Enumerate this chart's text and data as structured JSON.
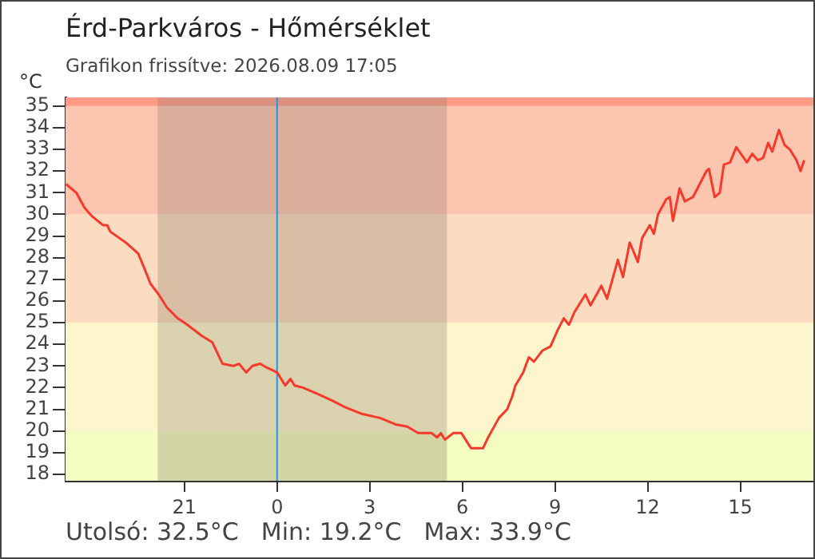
{
  "chart_data": {
    "type": "line",
    "title": "Érd-Parkváros - Hőmérséklet",
    "subtitle": "Grafikon frissítve: 2026.08.09 17:05",
    "ylabel": "°C",
    "annotations": [
      "Utolsó: 32.5°C",
      "Min: 19.2°C",
      "Max: 33.9°C"
    ],
    "xlim": [
      "2026-08-08T17:09",
      "2026-08-09T17:25"
    ],
    "ylim": [
      17.7,
      35.4
    ],
    "xticks": [
      {
        "value": "2026-08-08T21:00",
        "label": "21"
      },
      {
        "value": "2026-08-09T00:00",
        "label": "0"
      },
      {
        "value": "2026-08-09T03:00",
        "label": "3"
      },
      {
        "value": "2026-08-09T06:00",
        "label": "6"
      },
      {
        "value": "2026-08-09T09:00",
        "label": "9"
      },
      {
        "value": "2026-08-09T12:00",
        "label": "12"
      },
      {
        "value": "2026-08-09T15:00",
        "label": "15"
      }
    ],
    "yticks": [
      18,
      19,
      20,
      21,
      22,
      23,
      24,
      25,
      26,
      27,
      28,
      29,
      30,
      31,
      32,
      33,
      34,
      35
    ],
    "series": [
      {
        "color": "#f5392b",
        "x": [
          "2026-08-08T17:10",
          "2026-08-08T17:30",
          "2026-08-08T17:46",
          "2026-08-08T18:01",
          "2026-08-08T18:22",
          "2026-08-08T18:30",
          "2026-08-08T18:36",
          "2026-08-08T19:06",
          "2026-08-08T19:30",
          "2026-08-08T19:44",
          "2026-08-08T19:54",
          "2026-08-08T20:10",
          "2026-08-08T20:26",
          "2026-08-08T20:47",
          "2026-08-08T21:06",
          "2026-08-08T21:33",
          "2026-08-08T21:54",
          "2026-08-08T22:14",
          "2026-08-08T22:35",
          "2026-08-08T22:46",
          "2026-08-08T23:00",
          "2026-08-08T23:12",
          "2026-08-08T23:27",
          "2026-08-08T23:42",
          "2026-08-09T00:00",
          "2026-08-09T00:16",
          "2026-08-09T00:26",
          "2026-08-09T00:34",
          "2026-08-09T00:50",
          "2026-08-09T01:00",
          "2026-08-09T01:20",
          "2026-08-09T01:47",
          "2026-08-09T02:12",
          "2026-08-09T02:43",
          "2026-08-09T03:20",
          "2026-08-09T03:50",
          "2026-08-09T04:13",
          "2026-08-09T04:34",
          "2026-08-09T05:00",
          "2026-08-09T05:11",
          "2026-08-09T05:18",
          "2026-08-09T05:26",
          "2026-08-09T05:42",
          "2026-08-09T05:58",
          "2026-08-09T06:17",
          "2026-08-09T06:40",
          "2026-08-09T06:50",
          "2026-08-09T07:11",
          "2026-08-09T07:27",
          "2026-08-09T07:37",
          "2026-08-09T07:43",
          "2026-08-09T07:58",
          "2026-08-09T08:09",
          "2026-08-09T08:19",
          "2026-08-09T08:35",
          "2026-08-09T08:51",
          "2026-08-09T09:06",
          "2026-08-09T09:17",
          "2026-08-09T09:27",
          "2026-08-09T09:38",
          "2026-08-09T09:59",
          "2026-08-09T10:09",
          "2026-08-09T10:30",
          "2026-08-09T10:41",
          "2026-08-09T11:02",
          "2026-08-09T11:12",
          "2026-08-09T11:25",
          "2026-08-09T11:41",
          "2026-08-09T11:49",
          "2026-08-09T12:04",
          "2026-08-09T12:12",
          "2026-08-09T12:20",
          "2026-08-09T12:36",
          "2026-08-09T12:43",
          "2026-08-09T12:49",
          "2026-08-09T13:02",
          "2026-08-09T13:12",
          "2026-08-09T13:28",
          "2026-08-09T13:54",
          "2026-08-09T13:59",
          "2026-08-09T14:10",
          "2026-08-09T14:20",
          "2026-08-09T14:28",
          "2026-08-09T14:40",
          "2026-08-09T14:52",
          "2026-08-09T15:13",
          "2026-08-09T15:23",
          "2026-08-09T15:34",
          "2026-08-09T15:44",
          "2026-08-09T15:54",
          "2026-08-09T16:02",
          "2026-08-09T16:15",
          "2026-08-09T16:26",
          "2026-08-09T16:36",
          "2026-08-09T16:49",
          "2026-08-09T16:57",
          "2026-08-09T17:04"
        ],
        "values": [
          31.4,
          31.0,
          30.3,
          29.9,
          29.5,
          29.5,
          29.2,
          28.7,
          28.2,
          27.4,
          26.8,
          26.3,
          25.7,
          25.2,
          24.9,
          24.4,
          24.1,
          23.1,
          23.0,
          23.1,
          22.7,
          23.0,
          23.1,
          22.9,
          22.7,
          22.1,
          22.4,
          22.1,
          22.0,
          21.9,
          21.7,
          21.4,
          21.1,
          20.8,
          20.6,
          20.3,
          20.2,
          19.9,
          19.9,
          19.7,
          19.9,
          19.6,
          19.9,
          19.9,
          19.2,
          19.2,
          19.7,
          20.6,
          21.0,
          21.6,
          22.1,
          22.7,
          23.4,
          23.2,
          23.7,
          23.9,
          24.7,
          25.2,
          24.9,
          25.5,
          26.3,
          25.8,
          26.7,
          26.1,
          27.9,
          27.1,
          28.7,
          27.8,
          28.9,
          29.5,
          29.1,
          30.0,
          30.7,
          30.8,
          29.7,
          31.2,
          30.6,
          30.8,
          32.0,
          32.1,
          30.8,
          31.0,
          32.3,
          32.4,
          33.1,
          32.4,
          32.8,
          32.5,
          32.6,
          33.3,
          32.9,
          33.9,
          33.2,
          33.0,
          32.5,
          32.0,
          32.5
        ]
      }
    ],
    "bands": [
      {
        "axis": "y",
        "from": 17.7,
        "to": 20,
        "color": "#f4fcc1"
      },
      {
        "axis": "y",
        "from": 20,
        "to": 25,
        "color": "#fdf6cd"
      },
      {
        "axis": "y",
        "from": 25,
        "to": 30,
        "color": "#fbdcc0"
      },
      {
        "axis": "y",
        "from": 30,
        "to": 35,
        "color": "#fcc5b0"
      },
      {
        "axis": "y",
        "from": 35,
        "to": 35.4,
        "color": "#ff9a87"
      },
      {
        "axis": "x",
        "from": "2026-08-08T20:08",
        "to": "2026-08-09T05:30",
        "color": "#8a7a6a"
      }
    ],
    "ref_lines": [
      {
        "axis": "x",
        "value": "2026-08-09T00:00",
        "color": "#2196e8"
      }
    ],
    "marker": "none",
    "line_style": "solid",
    "legend": false,
    "grid": false
  }
}
